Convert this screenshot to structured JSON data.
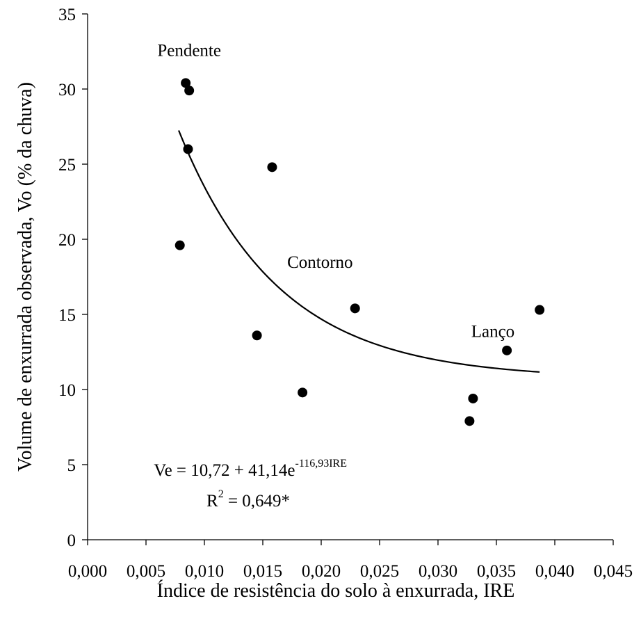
{
  "chart_data": {
    "type": "scatter",
    "title": "",
    "xlabel": "Índice de resistência do solo à enxurrada, IRE",
    "ylabel": "Volume de enxurrada observada, Vo (% da chuva)",
    "xlim": [
      0,
      0.045
    ],
    "ylim": [
      0,
      35
    ],
    "x_ticks": [
      "0,000",
      "0,005",
      "0,010",
      "0,015",
      "0,020",
      "0,025",
      "0,030",
      "0,035",
      "0,040",
      "0,045"
    ],
    "y_ticks": [
      "0",
      "5",
      "10",
      "15",
      "20",
      "25",
      "30",
      "35"
    ],
    "grid": false,
    "points": [
      {
        "x": 0.0084,
        "y": 30.4
      },
      {
        "x": 0.0087,
        "y": 29.9
      },
      {
        "x": 0.0086,
        "y": 26.0
      },
      {
        "x": 0.0079,
        "y": 19.6
      },
      {
        "x": 0.0158,
        "y": 24.8
      },
      {
        "x": 0.0145,
        "y": 13.6
      },
      {
        "x": 0.0184,
        "y": 9.8
      },
      {
        "x": 0.0229,
        "y": 15.4
      },
      {
        "x": 0.0327,
        "y": 7.9
      },
      {
        "x": 0.033,
        "y": 9.4
      },
      {
        "x": 0.0359,
        "y": 12.6
      },
      {
        "x": 0.0387,
        "y": 15.3
      }
    ],
    "fit": {
      "a": 10.72,
      "b": 41.14,
      "k": -116.93,
      "x_range": [
        0.0078,
        0.0387
      ]
    },
    "annotations": [
      {
        "text": "Pendente",
        "x": 0.0087,
        "y": 32.2
      },
      {
        "text": "Contorno",
        "x": 0.0199,
        "y": 18.1
      },
      {
        "text": "Lanço",
        "x": 0.0347,
        "y": 13.5
      }
    ],
    "equation": {
      "line1_main": "Ve = 10,72 + 41,14e",
      "line1_sup": "-116,93IRE",
      "line2_main": "R",
      "line2_sup": "2",
      "line2_rest": " = 0,649*"
    }
  }
}
